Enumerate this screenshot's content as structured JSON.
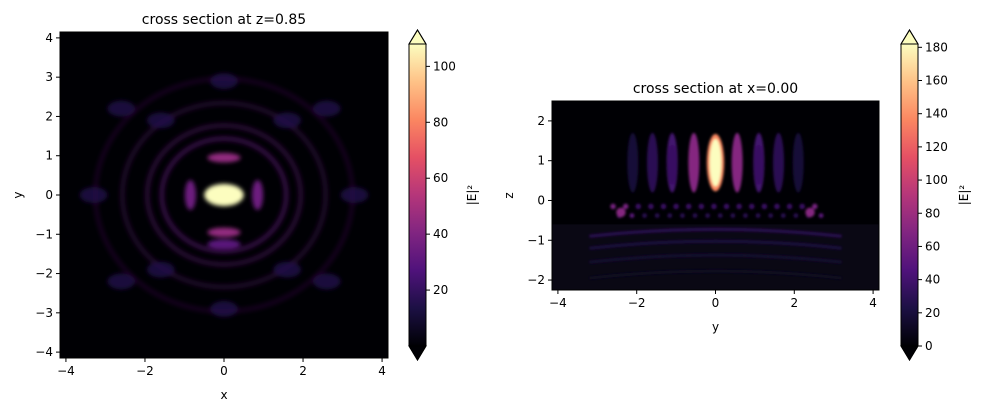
{
  "chart_data": [
    {
      "type": "heatmap",
      "title": "cross section at z=0.85",
      "xlabel": "x",
      "ylabel": "y",
      "xlim": [
        -4.15,
        4.15
      ],
      "ylim": [
        -4.15,
        4.15
      ],
      "xticks": [
        -4,
        -2,
        0,
        2,
        4
      ],
      "yticks": [
        -4,
        -3,
        -2,
        -1,
        0,
        1,
        2,
        3,
        4
      ],
      "colorbar": {
        "label": "|E|²",
        "range": [
          0,
          108
        ],
        "ticks": [
          20,
          40,
          60,
          80,
          100
        ],
        "colormap": "magma",
        "extend": "both"
      },
      "features": [
        {
          "name": "central hotspot",
          "x": 0.0,
          "y": 0.0,
          "value": 108
        },
        {
          "name": "ring",
          "x": 0.0,
          "y": 0.95,
          "value": 45
        },
        {
          "name": "ring",
          "x": 0.0,
          "y": -0.95,
          "value": 45
        },
        {
          "name": "ring",
          "x": 0.0,
          "y": -1.25,
          "value": 30
        },
        {
          "name": "side lobe",
          "x": -0.85,
          "y": 0.0,
          "value": 35
        },
        {
          "name": "side lobe",
          "x": 0.85,
          "y": 0.0,
          "value": 35
        }
      ]
    },
    {
      "type": "heatmap",
      "title": "cross section at x=0.00",
      "xlabel": "y",
      "ylabel": "z",
      "xlim": [
        -4.15,
        4.15
      ],
      "ylim": [
        -2.25,
        2.5
      ],
      "xticks": [
        -4,
        -2,
        0,
        2,
        4
      ],
      "yticks": [
        -2,
        -1,
        0,
        1,
        2
      ],
      "colorbar": {
        "label": "|E|²",
        "range": [
          0,
          182
        ],
        "ticks": [
          0,
          20,
          40,
          60,
          80,
          100,
          120,
          140,
          160,
          180
        ],
        "colormap": "magma",
        "extend": "both"
      },
      "features": [
        {
          "name": "central hotspot",
          "x": 0.0,
          "y": 0.95,
          "value": 182
        },
        {
          "name": "lobe",
          "x": -0.55,
          "y": 1.0,
          "value": 70
        },
        {
          "name": "lobe",
          "x": 0.55,
          "y": 1.0,
          "value": 70
        },
        {
          "name": "lobe",
          "x": -1.1,
          "y": 0.9,
          "value": 35
        },
        {
          "name": "lobe",
          "x": 1.1,
          "y": 0.9,
          "value": 35
        },
        {
          "name": "interface spots",
          "x": 0.0,
          "y": -0.25,
          "value": 60
        },
        {
          "name": "interface spot",
          "x": -2.4,
          "y": -0.3,
          "value": 70
        },
        {
          "name": "interface spot",
          "x": 2.4,
          "y": -0.3,
          "value": 70
        }
      ]
    }
  ],
  "colors": {
    "magma_low": "#000004",
    "magma_mid": "#b5367a",
    "magma_high": "#fcfdbf"
  }
}
